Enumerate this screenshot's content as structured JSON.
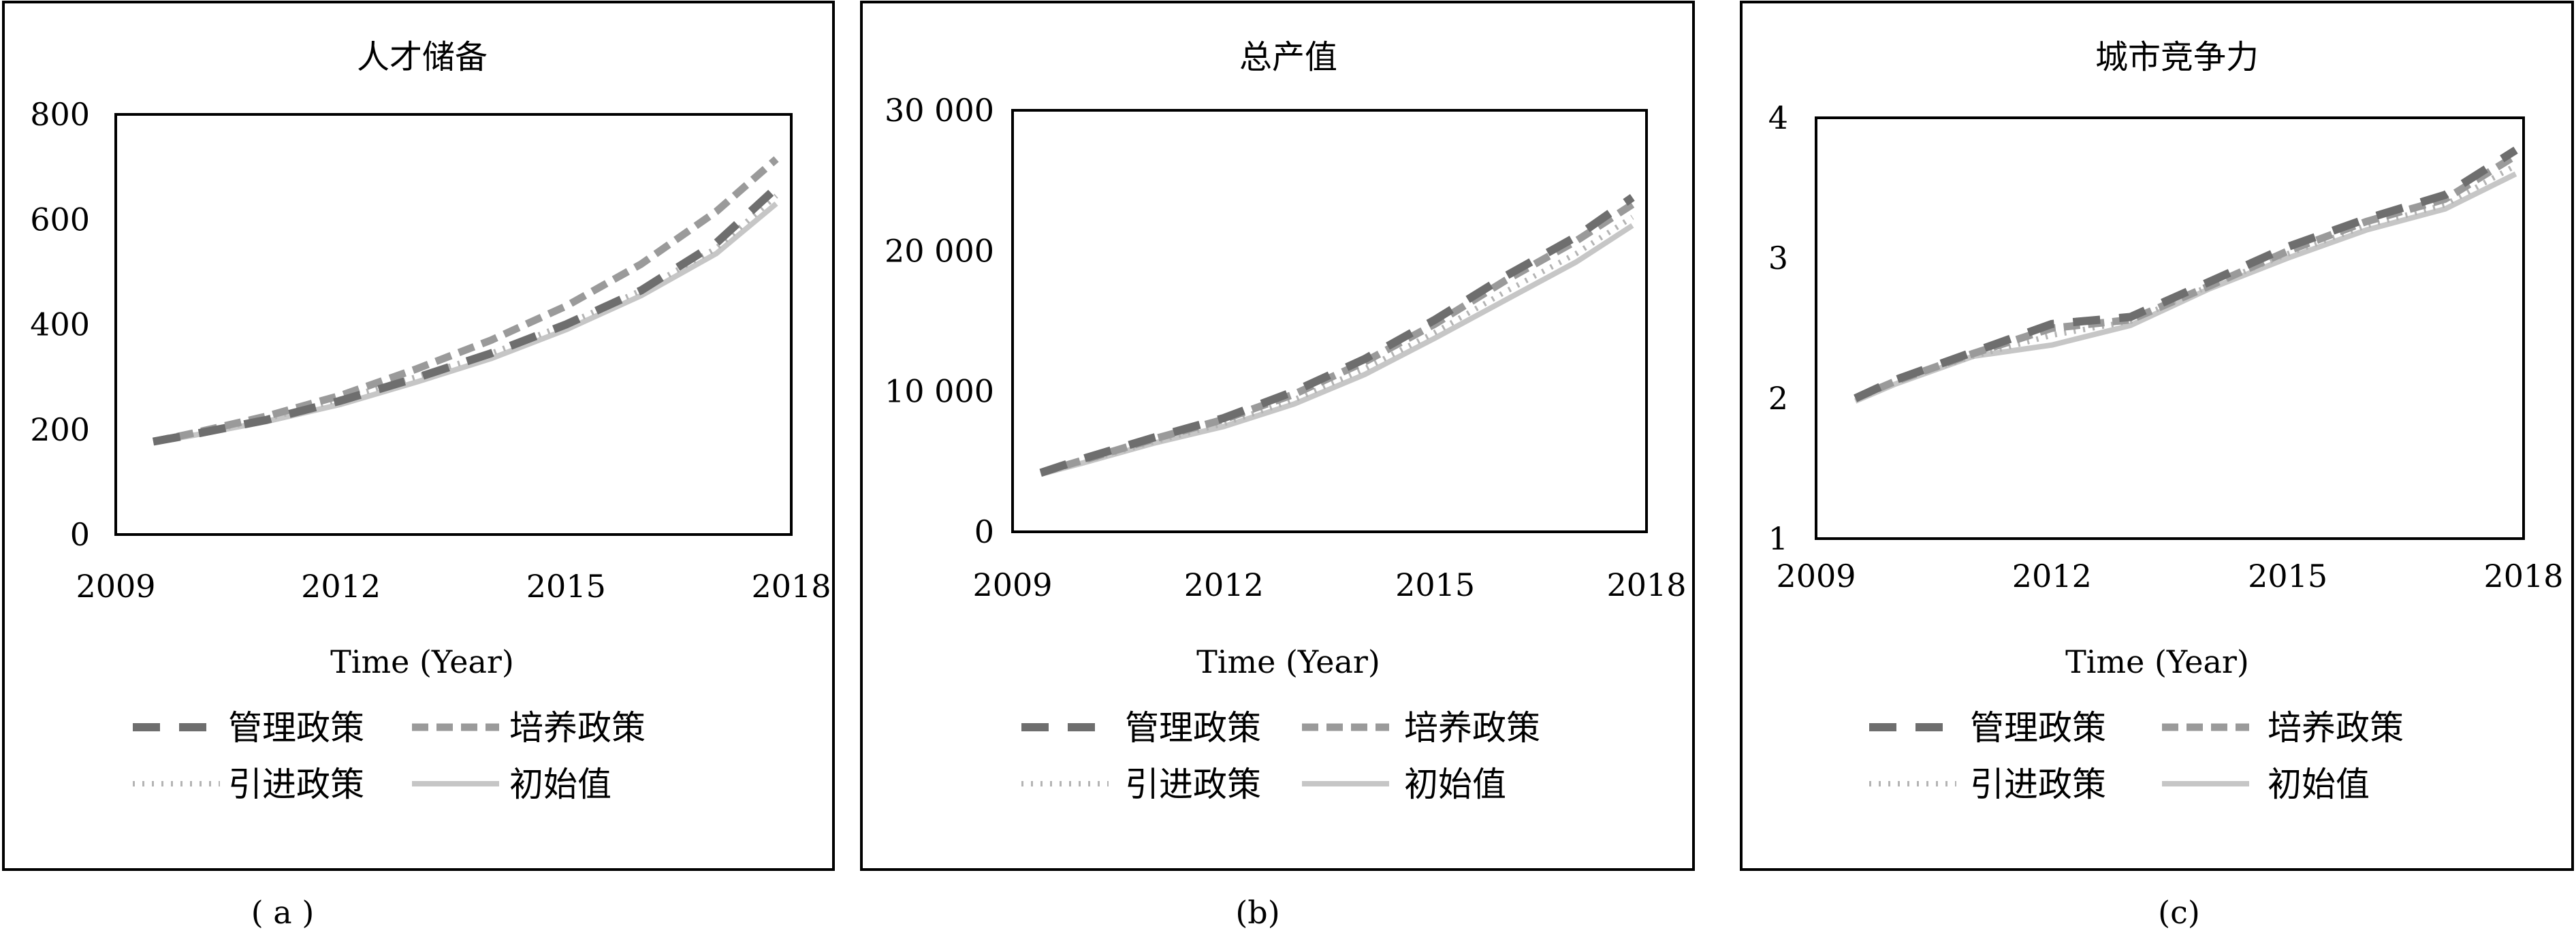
{
  "legend": [
    "管理政策",
    "培养政策",
    "引进政策",
    "初始值"
  ],
  "styles": {
    "管理政策": {
      "color": "#6e6e6e",
      "dash": "40,28",
      "width": 12
    },
    "培养政策": {
      "color": "#9a9a9a",
      "dash": "24,12",
      "width": 11
    },
    "引进政策": {
      "color": "#b4b4b4",
      "dash": "3,11",
      "width": 8
    },
    "初始值": {
      "color": "#c6c6c6",
      "dash": "",
      "width": 8
    }
  },
  "chart_data": [
    {
      "type": "line",
      "title": "人才储备",
      "xlabel": "Time (Year)",
      "ylabel": "",
      "caption": "( a )",
      "x": [
        2009,
        2010,
        2011,
        2012,
        2013,
        2014,
        2015,
        2016,
        2017,
        2018
      ],
      "xticks": [
        "2009",
        "2012",
        "2015",
        "2018"
      ],
      "yticks": [
        "0",
        "200",
        "400",
        "600",
        "800"
      ],
      "ylim": [
        0,
        800
      ],
      "series": [
        {
          "name": "管理政策",
          "x": [
            2009.5,
            2010,
            2011,
            2012,
            2013,
            2014,
            2015,
            2016,
            2017,
            2017.8
          ],
          "values": [
            177,
            190,
            218,
            255,
            298,
            345,
            400,
            465,
            555,
            660
          ]
        },
        {
          "name": "培养政策",
          "x": [
            2009.5,
            2010,
            2011,
            2012,
            2013,
            2014,
            2015,
            2016,
            2017,
            2017.8
          ],
          "values": [
            177,
            192,
            225,
            265,
            315,
            370,
            435,
            515,
            615,
            715
          ]
        },
        {
          "name": "引进政策",
          "x": [
            2009.5,
            2010,
            2011,
            2012,
            2013,
            2014,
            2015,
            2016,
            2017,
            2017.8
          ],
          "values": [
            177,
            190,
            220,
            258,
            300,
            345,
            400,
            465,
            545,
            645
          ]
        },
        {
          "name": "初始值",
          "x": [
            2009.5,
            2010,
            2011,
            2012,
            2013,
            2014,
            2015,
            2016,
            2017,
            2017.8
          ],
          "values": [
            176,
            188,
            215,
            248,
            290,
            335,
            390,
            455,
            535,
            630
          ]
        }
      ]
    },
    {
      "type": "line",
      "title": "总产值",
      "xlabel": "Time (Year)",
      "ylabel": "",
      "caption": "(b)",
      "x": [
        2009,
        2010,
        2011,
        2012,
        2013,
        2014,
        2015,
        2016,
        2017,
        2018
      ],
      "xticks": [
        "2009",
        "2012",
        "2015",
        "2018"
      ],
      "yticks": [
        "0",
        "10 000",
        "20 000",
        "30 000"
      ],
      "ylim": [
        0,
        30000
      ],
      "series": [
        {
          "name": "管理政策",
          "x": [
            2009.4,
            2010,
            2011,
            2012,
            2013,
            2014,
            2015,
            2016,
            2017,
            2017.8
          ],
          "values": [
            4200,
            5200,
            6700,
            8100,
            10000,
            12300,
            15100,
            18200,
            21000,
            23800
          ]
        },
        {
          "name": "培养政策",
          "x": [
            2009.4,
            2010,
            2011,
            2012,
            2013,
            2014,
            2015,
            2016,
            2017,
            2017.8
          ],
          "values": [
            4200,
            5100,
            6600,
            8000,
            9800,
            12100,
            14800,
            17900,
            20700,
            23300
          ]
        },
        {
          "name": "引进政策",
          "x": [
            2009.4,
            2010,
            2011,
            2012,
            2013,
            2014,
            2015,
            2016,
            2017,
            2017.8
          ],
          "values": [
            4150,
            5000,
            6400,
            7700,
            9400,
            11600,
            14200,
            17100,
            19800,
            22400
          ]
        },
        {
          "name": "初始值",
          "x": [
            2009.4,
            2010,
            2011,
            2012,
            2013,
            2014,
            2015,
            2016,
            2017,
            2017.8
          ],
          "values": [
            4100,
            4900,
            6300,
            7500,
            9100,
            11200,
            13800,
            16500,
            19200,
            21800
          ]
        }
      ]
    },
    {
      "type": "line",
      "title": "城市竞争力",
      "xlabel": "Time (Year)",
      "ylabel": "",
      "caption": "(c)",
      "x": [
        2009,
        2010,
        2011,
        2012,
        2013,
        2014,
        2015,
        2016,
        2017,
        2018
      ],
      "xticks": [
        "2009",
        "2012",
        "2015",
        "2018"
      ],
      "yticks": [
        "1",
        "2",
        "3",
        "4"
      ],
      "ylim": [
        1,
        4
      ],
      "series": [
        {
          "name": "管理政策",
          "x": [
            2009.5,
            2010,
            2011,
            2012,
            2013,
            2014,
            2015,
            2016,
            2017,
            2017.9
          ],
          "values": [
            2.0,
            2.13,
            2.33,
            2.53,
            2.58,
            2.83,
            3.08,
            3.28,
            3.45,
            3.77
          ]
        },
        {
          "name": "培养政策",
          "x": [
            2009.5,
            2010,
            2011,
            2012,
            2013,
            2014,
            2015,
            2016,
            2017,
            2017.9
          ],
          "values": [
            2.0,
            2.12,
            2.32,
            2.5,
            2.56,
            2.8,
            3.05,
            3.26,
            3.42,
            3.73
          ]
        },
        {
          "name": "引进政策",
          "x": [
            2009.5,
            2010,
            2011,
            2012,
            2013,
            2014,
            2015,
            2016,
            2017,
            2017.9
          ],
          "values": [
            2.0,
            2.12,
            2.3,
            2.45,
            2.55,
            2.8,
            3.03,
            3.23,
            3.38,
            3.66
          ]
        },
        {
          "name": "初始值",
          "x": [
            2009.5,
            2010,
            2011,
            2012,
            2013,
            2014,
            2015,
            2016,
            2017,
            2017.9
          ],
          "values": [
            1.98,
            2.1,
            2.3,
            2.38,
            2.52,
            2.78,
            3.0,
            3.2,
            3.35,
            3.6
          ]
        }
      ]
    }
  ]
}
